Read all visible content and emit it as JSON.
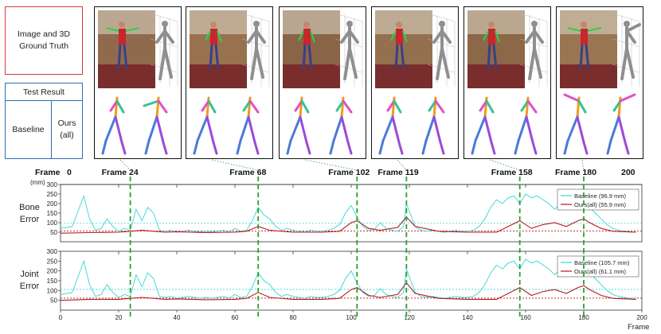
{
  "legend": {
    "gt_label": "Image and 3D Ground Truth",
    "test_result": "Test Result",
    "baseline": "Baseline",
    "ours": "Ours (all)"
  },
  "colors": {
    "gt_border": "#d9383a",
    "test_border": "#2e6fb3",
    "baseline_line": "#33d6d6",
    "ours_line": "#b8191a",
    "marker_line": "#2ca02c"
  },
  "frame_axis": {
    "label": "Frame",
    "start": "0",
    "end": "200",
    "unit": "(mm)",
    "markers": [
      {
        "label": "Frame 24",
        "frame": 24
      },
      {
        "label": "Frame 68",
        "frame": 68
      },
      {
        "label": "Frame 102",
        "frame": 102
      },
      {
        "label": "Frame 119",
        "frame": 119
      },
      {
        "label": "Frame 158",
        "frame": 158
      },
      {
        "label": "Frame 180",
        "frame": 180
      }
    ]
  },
  "chart_data": [
    {
      "type": "line",
      "ylabel": "Bone Error",
      "xlim": [
        0,
        200
      ],
      "ylim": [
        0,
        300
      ],
      "yticks": [
        50,
        100,
        150,
        200,
        250,
        300
      ],
      "series": [
        {
          "name": "Baseline (96.9 mm)",
          "color": "#33d6d6",
          "mean": 96.9,
          "x": [
            0,
            4,
            6,
            8,
            10,
            12,
            14,
            16,
            18,
            20,
            22,
            24,
            26,
            28,
            30,
            32,
            34,
            36,
            38,
            40,
            42,
            44,
            46,
            48,
            50,
            52,
            54,
            56,
            58,
            60,
            62,
            64,
            66,
            68,
            70,
            72,
            74,
            76,
            78,
            80,
            82,
            84,
            86,
            88,
            90,
            92,
            94,
            96,
            98,
            100,
            102,
            104,
            106,
            108,
            110,
            112,
            114,
            116,
            118,
            119,
            120,
            122,
            124,
            126,
            128,
            130,
            132,
            134,
            136,
            138,
            140,
            142,
            144,
            146,
            148,
            150,
            152,
            154,
            156,
            158,
            160,
            162,
            164,
            166,
            168,
            170,
            172,
            174,
            176,
            178,
            180,
            182,
            184,
            186,
            188,
            190,
            192,
            194,
            196,
            198
          ],
          "y": [
            70,
            80,
            160,
            240,
            120,
            60,
            70,
            120,
            80,
            55,
            70,
            60,
            170,
            110,
            180,
            150,
            60,
            55,
            60,
            50,
            55,
            60,
            55,
            50,
            55,
            50,
            55,
            60,
            50,
            70,
            55,
            60,
            110,
            180,
            140,
            120,
            80,
            60,
            70,
            60,
            55,
            50,
            60,
            55,
            55,
            60,
            70,
            90,
            150,
            190,
            130,
            80,
            60,
            65,
            100,
            70,
            60,
            55,
            80,
            200,
            160,
            80,
            60,
            55,
            60,
            55,
            50,
            55,
            60,
            55,
            55,
            60,
            80,
            120,
            180,
            220,
            200,
            230,
            240,
            200,
            250,
            230,
            240,
            220,
            200,
            170,
            200,
            240,
            250,
            230,
            200,
            180,
            150,
            120,
            90,
            70,
            60,
            55,
            50,
            50
          ]
        },
        {
          "name": "Ours(all) (55.9 mm)",
          "color": "#b8191a",
          "mean": 55.9,
          "x": [
            0,
            10,
            20,
            24,
            28,
            32,
            36,
            40,
            50,
            60,
            64,
            68,
            72,
            80,
            90,
            96,
            100,
            102,
            106,
            110,
            116,
            119,
            122,
            130,
            140,
            150,
            154,
            158,
            162,
            166,
            170,
            174,
            178,
            180,
            182,
            186,
            190,
            198
          ],
          "y": [
            45,
            48,
            50,
            55,
            60,
            55,
            50,
            52,
            48,
            50,
            55,
            80,
            60,
            50,
            50,
            55,
            100,
            110,
            70,
            60,
            75,
            130,
            80,
            55,
            50,
            50,
            80,
            110,
            70,
            90,
            100,
            80,
            110,
            120,
            100,
            70,
            55,
            50
          ]
        }
      ]
    },
    {
      "type": "line",
      "ylabel": "Joint Error",
      "xlabel": "Frame",
      "xlim": [
        0,
        200
      ],
      "ylim": [
        0,
        300
      ],
      "xticks": [
        0,
        20,
        40,
        60,
        80,
        100,
        120,
        140,
        160,
        180,
        200
      ],
      "yticks": [
        50,
        100,
        150,
        200,
        250,
        300
      ],
      "series": [
        {
          "name": "Baseline (105.7 mm)",
          "color": "#33d6d6",
          "mean": 105.7,
          "x": [
            0,
            4,
            6,
            8,
            10,
            12,
            14,
            16,
            18,
            20,
            22,
            24,
            26,
            28,
            30,
            32,
            34,
            36,
            38,
            40,
            42,
            44,
            46,
            48,
            50,
            52,
            54,
            56,
            58,
            60,
            62,
            64,
            66,
            68,
            70,
            72,
            74,
            76,
            78,
            80,
            82,
            84,
            86,
            88,
            90,
            92,
            94,
            96,
            98,
            100,
            102,
            104,
            106,
            108,
            110,
            112,
            114,
            116,
            118,
            119,
            120,
            122,
            124,
            126,
            128,
            130,
            132,
            134,
            136,
            138,
            140,
            142,
            144,
            146,
            148,
            150,
            152,
            154,
            156,
            158,
            160,
            162,
            164,
            166,
            168,
            170,
            172,
            174,
            176,
            178,
            180,
            182,
            184,
            186,
            188,
            190,
            192,
            194,
            196,
            198
          ],
          "y": [
            80,
            90,
            170,
            250,
            130,
            70,
            80,
            130,
            90,
            65,
            80,
            70,
            180,
            120,
            190,
            160,
            70,
            65,
            70,
            60,
            65,
            70,
            65,
            60,
            65,
            60,
            65,
            70,
            60,
            80,
            65,
            70,
            120,
            190,
            150,
            130,
            90,
            70,
            80,
            70,
            65,
            60,
            70,
            65,
            65,
            70,
            80,
            100,
            160,
            200,
            140,
            90,
            70,
            75,
            110,
            80,
            70,
            65,
            90,
            210,
            170,
            90,
            70,
            65,
            70,
            65,
            60,
            65,
            70,
            65,
            65,
            70,
            90,
            130,
            190,
            230,
            210,
            240,
            250,
            210,
            260,
            240,
            250,
            230,
            210,
            180,
            210,
            250,
            260,
            240,
            210,
            190,
            160,
            130,
            100,
            80,
            70,
            65,
            60,
            60
          ]
        },
        {
          "name": "Ours(all) (61.1 mm)",
          "color": "#b8191a",
          "mean": 61.1,
          "x": [
            0,
            10,
            20,
            24,
            28,
            32,
            36,
            40,
            50,
            60,
            64,
            68,
            72,
            80,
            90,
            96,
            100,
            102,
            106,
            110,
            116,
            119,
            122,
            130,
            140,
            150,
            154,
            158,
            162,
            166,
            170,
            174,
            178,
            180,
            182,
            186,
            190,
            198
          ],
          "y": [
            50,
            55,
            55,
            60,
            65,
            60,
            55,
            57,
            53,
            55,
            60,
            90,
            65,
            55,
            55,
            60,
            105,
            115,
            75,
            65,
            80,
            140,
            85,
            60,
            55,
            55,
            85,
            115,
            75,
            95,
            105,
            85,
            115,
            125,
            105,
            75,
            60,
            55
          ]
        }
      ]
    }
  ]
}
